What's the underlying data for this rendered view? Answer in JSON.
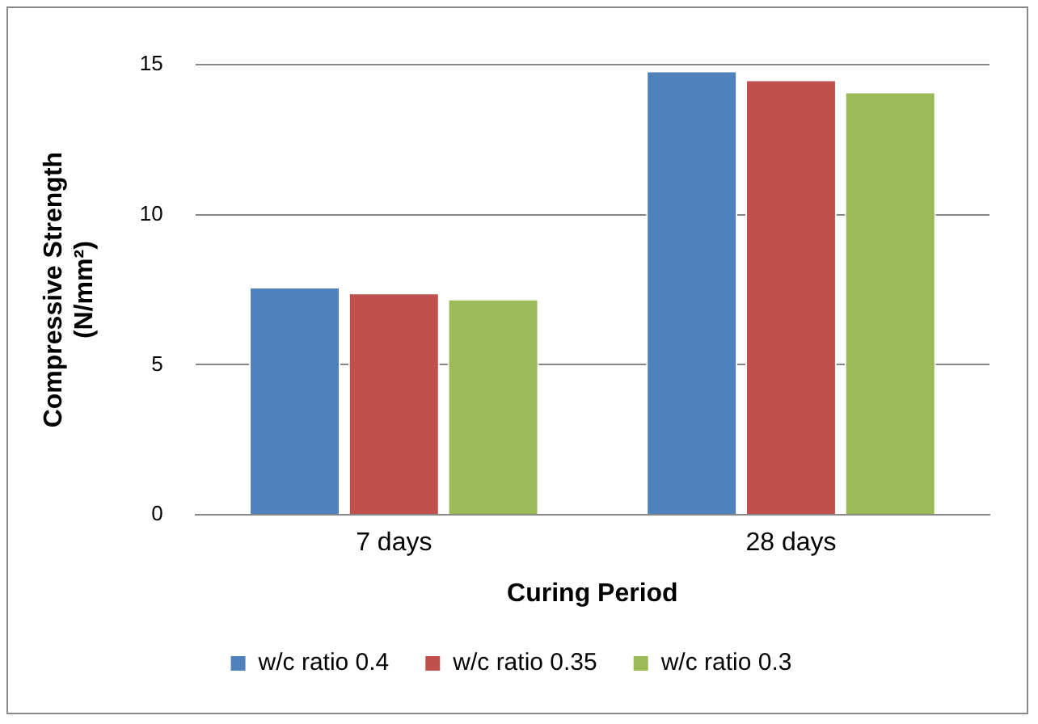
{
  "chart_data": {
    "type": "bar",
    "xlabel": "Curing Period",
    "ylabel": "Compressive Strength (N/mm²)",
    "categories": [
      "7 days",
      "28 days"
    ],
    "series": [
      {
        "name": "w/c ratio 0.4",
        "color": "#4f81bd",
        "values": [
          7.6,
          14.8
        ]
      },
      {
        "name": "w/c ratio 0.35",
        "color": "#c0504d",
        "values": [
          7.4,
          14.5
        ]
      },
      {
        "name": "w/c ratio 0.3",
        "color": "#9bbb59",
        "values": [
          7.2,
          14.1
        ]
      }
    ],
    "ylim": [
      0,
      15
    ],
    "yticks": [
      0,
      5,
      10,
      15
    ],
    "grid": "y",
    "legend": "bottom"
  }
}
